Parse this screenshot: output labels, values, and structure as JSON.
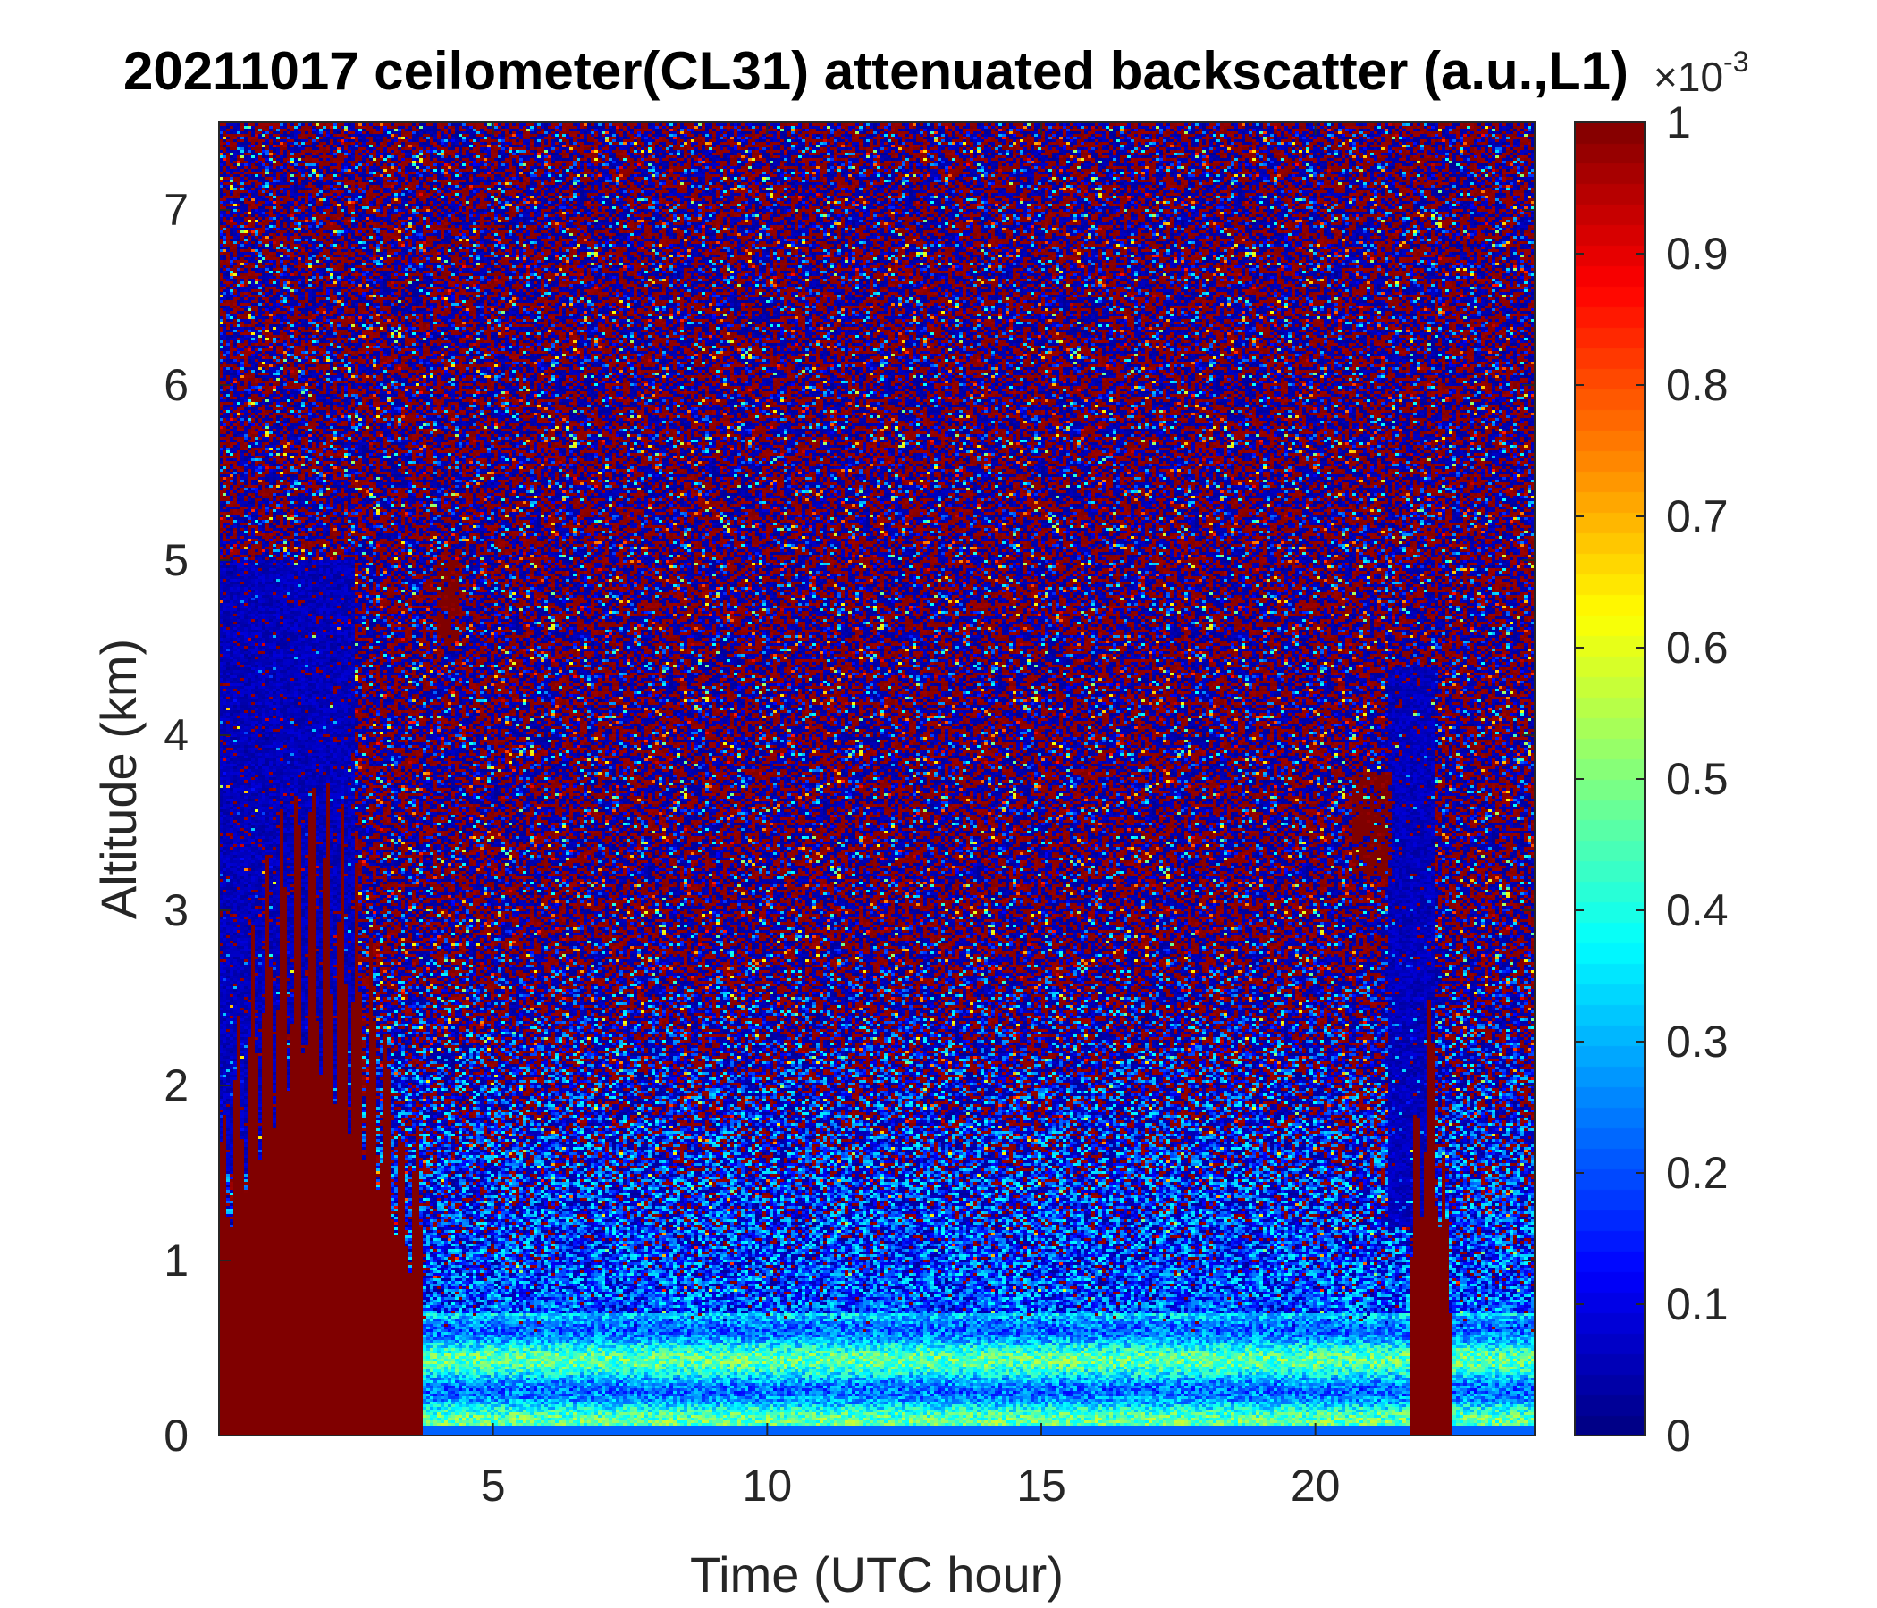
{
  "figure": {
    "background": "#ffffff"
  },
  "chart_data": {
    "type": "heatmap",
    "title": "20211017 ceilometer(CL31) attenuated backscatter (a.u.,L1)",
    "xlabel": "Time (UTC hour)",
    "ylabel": "Altitude (km)",
    "xlim": [
      0,
      24
    ],
    "ylim": [
      0,
      7.5
    ],
    "xticks": [
      5,
      10,
      15,
      20
    ],
    "yticks": [
      0,
      1,
      2,
      3,
      4,
      5,
      6,
      7
    ],
    "colorbar": {
      "colormap": "jet",
      "clim": [
        0,
        0.001
      ],
      "ticks": [
        0,
        0.1,
        0.2,
        0.3,
        0.4,
        0.5,
        0.6,
        0.7,
        0.8,
        0.9,
        1
      ],
      "exponent_base": "×10",
      "exponent_power": "-3",
      "colors": [
        "#00008f",
        "#0000ff",
        "#0080ff",
        "#00ffff",
        "#80ff80",
        "#ffff00",
        "#ff8000",
        "#ff0000",
        "#800000"
      ]
    },
    "features": [
      {
        "name": "saturated (cloud/precip) column",
        "time": [
          0,
          3.7
        ],
        "altitude": [
          0,
          3.9
        ],
        "value": 0.001
      },
      {
        "name": "saturated (cloud/precip) column",
        "time": [
          21.7,
          22.5
        ],
        "altitude": [
          0,
          2.6
        ],
        "value": 0.001
      },
      {
        "name": "low-signal region",
        "time": [
          0,
          2.5
        ],
        "altitude": [
          1.5,
          5.0
        ],
        "value": 0.0001
      },
      {
        "name": "low-signal region",
        "time": [
          21.3,
          22.2
        ],
        "altitude": [
          1.2,
          4.4
        ],
        "value": 0.0001
      },
      {
        "name": "boundary-layer aerosol",
        "time": [
          3.7,
          21.7
        ],
        "altitude": [
          0,
          0.7
        ],
        "value": 0.0004
      },
      {
        "name": "mid-level cloud patch",
        "time": [
          20.7,
          21.4
        ],
        "altitude": [
          3.2,
          3.8
        ],
        "value": 0.001
      },
      {
        "name": "mid-level cloud patch",
        "time": [
          4.0,
          4.4
        ],
        "altitude": [
          4.5,
          5.0
        ],
        "value": 0.001
      },
      {
        "name": "noise (upper troposphere)",
        "time": [
          0,
          24
        ],
        "altitude": [
          2.0,
          7.5
        ],
        "value": "random 0–0.001"
      }
    ]
  }
}
